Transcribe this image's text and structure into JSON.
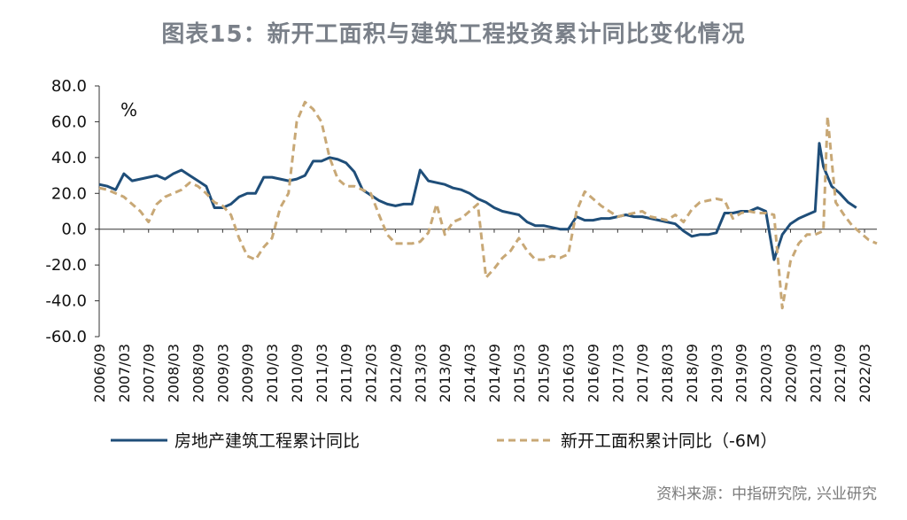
{
  "title": "图表15：新开工面积与建筑工程投资累计同比变化情况",
  "unit": "%",
  "source": "资料来源：中指研究院, 兴业研究",
  "colors": {
    "series1": "#1f4e79",
    "series2": "#c8a876",
    "axis": "#333333",
    "title": "#7a8089"
  },
  "chart_data": {
    "type": "line",
    "ylim": [
      -60,
      80
    ],
    "yticks": [
      "80.0",
      "60.0",
      "40.0",
      "20.0",
      "0.0",
      "-20.0",
      "-40.0",
      "-60.0"
    ],
    "ytick_values": [
      80,
      60,
      40,
      20,
      0,
      -20,
      -40,
      -60
    ],
    "x_start": "2006/09",
    "x_end": "2022/06",
    "x_tick_labels": [
      "2006/09",
      "2007/03",
      "2007/09",
      "2008/03",
      "2008/09",
      "2009/03",
      "2009/09",
      "2010/03",
      "2010/09",
      "2011/03",
      "2011/09",
      "2012/03",
      "2012/09",
      "2013/03",
      "2013/09",
      "2014/03",
      "2014/09",
      "2015/03",
      "2015/09",
      "2016/03",
      "2016/09",
      "2017/03",
      "2017/09",
      "2018/03",
      "2018/09",
      "2019/03",
      "2019/09",
      "2020/03",
      "2020/09",
      "2021/03",
      "2021/09",
      "2022/03"
    ],
    "grid": false,
    "legend_position": "bottom",
    "series": [
      {
        "name": "房地产建筑工程累计同比",
        "style": "solid",
        "points": [
          [
            "2006/09",
            25
          ],
          [
            "2006/11",
            24
          ],
          [
            "2007/01",
            22
          ],
          [
            "2007/03",
            31
          ],
          [
            "2007/05",
            27
          ],
          [
            "2007/07",
            28
          ],
          [
            "2007/09",
            29
          ],
          [
            "2007/11",
            30
          ],
          [
            "2008/01",
            28
          ],
          [
            "2008/03",
            31
          ],
          [
            "2008/05",
            33
          ],
          [
            "2008/07",
            30
          ],
          [
            "2008/09",
            27
          ],
          [
            "2008/11",
            24
          ],
          [
            "2009/01",
            12
          ],
          [
            "2009/03",
            12
          ],
          [
            "2009/05",
            14
          ],
          [
            "2009/07",
            18
          ],
          [
            "2009/09",
            20
          ],
          [
            "2009/11",
            20
          ],
          [
            "2010/01",
            29
          ],
          [
            "2010/03",
            29
          ],
          [
            "2010/05",
            28
          ],
          [
            "2010/07",
            27
          ],
          [
            "2010/09",
            28
          ],
          [
            "2010/11",
            30
          ],
          [
            "2011/01",
            38
          ],
          [
            "2011/03",
            38
          ],
          [
            "2011/05",
            40
          ],
          [
            "2011/07",
            39
          ],
          [
            "2011/09",
            37
          ],
          [
            "2011/11",
            32
          ],
          [
            "2012/01",
            22
          ],
          [
            "2012/03",
            19
          ],
          [
            "2012/05",
            16
          ],
          [
            "2012/07",
            14
          ],
          [
            "2012/09",
            13
          ],
          [
            "2012/11",
            14
          ],
          [
            "2013/01",
            14
          ],
          [
            "2013/03",
            33
          ],
          [
            "2013/05",
            27
          ],
          [
            "2013/07",
            26
          ],
          [
            "2013/09",
            25
          ],
          [
            "2013/11",
            23
          ],
          [
            "2014/01",
            22
          ],
          [
            "2014/03",
            20
          ],
          [
            "2014/05",
            17
          ],
          [
            "2014/07",
            15
          ],
          [
            "2014/09",
            12
          ],
          [
            "2014/11",
            10
          ],
          [
            "2015/01",
            9
          ],
          [
            "2015/03",
            8
          ],
          [
            "2015/05",
            4
          ],
          [
            "2015/07",
            2
          ],
          [
            "2015/09",
            2
          ],
          [
            "2015/11",
            1
          ],
          [
            "2016/01",
            0
          ],
          [
            "2016/03",
            0
          ],
          [
            "2016/05",
            7
          ],
          [
            "2016/07",
            5
          ],
          [
            "2016/09",
            5
          ],
          [
            "2016/11",
            6
          ],
          [
            "2017/01",
            6
          ],
          [
            "2017/03",
            7
          ],
          [
            "2017/05",
            8
          ],
          [
            "2017/07",
            7
          ],
          [
            "2017/09",
            7
          ],
          [
            "2017/11",
            6
          ],
          [
            "2018/01",
            5
          ],
          [
            "2018/03",
            4
          ],
          [
            "2018/05",
            3
          ],
          [
            "2018/07",
            -1
          ],
          [
            "2018/09",
            -4
          ],
          [
            "2018/11",
            -3
          ],
          [
            "2019/01",
            -3
          ],
          [
            "2019/03",
            -2
          ],
          [
            "2019/05",
            9
          ],
          [
            "2019/07",
            9
          ],
          [
            "2019/09",
            10
          ],
          [
            "2019/11",
            10
          ],
          [
            "2020/01",
            12
          ],
          [
            "2020/03",
            10
          ],
          [
            "2020/05",
            -17
          ],
          [
            "2020/07",
            -3
          ],
          [
            "2020/09",
            3
          ],
          [
            "2020/11",
            6
          ],
          [
            "2021/01",
            8
          ],
          [
            "2021/03",
            10
          ],
          [
            "2021/04",
            48
          ],
          [
            "2021/05",
            35
          ],
          [
            "2021/07",
            24
          ],
          [
            "2021/09",
            20
          ],
          [
            "2021/11",
            15
          ],
          [
            "2022/01",
            12
          ]
        ]
      },
      {
        "name": "新开工面积累计同比（-6M）",
        "style": "dashed",
        "points": [
          [
            "2006/09",
            23
          ],
          [
            "2006/11",
            22
          ],
          [
            "2007/01",
            20
          ],
          [
            "2007/03",
            18
          ],
          [
            "2007/05",
            14
          ],
          [
            "2007/07",
            10
          ],
          [
            "2007/09",
            4
          ],
          [
            "2007/11",
            14
          ],
          [
            "2008/01",
            18
          ],
          [
            "2008/03",
            20
          ],
          [
            "2008/05",
            22
          ],
          [
            "2008/07",
            26
          ],
          [
            "2008/09",
            24
          ],
          [
            "2008/11",
            20
          ],
          [
            "2009/01",
            15
          ],
          [
            "2009/03",
            13
          ],
          [
            "2009/05",
            8
          ],
          [
            "2009/07",
            -5
          ],
          [
            "2009/09",
            -15
          ],
          [
            "2009/11",
            -17
          ],
          [
            "2010/01",
            -10
          ],
          [
            "2010/03",
            -5
          ],
          [
            "2010/05",
            12
          ],
          [
            "2010/07",
            20
          ],
          [
            "2010/09",
            60
          ],
          [
            "2010/11",
            71
          ],
          [
            "2011/01",
            67
          ],
          [
            "2011/03",
            60
          ],
          [
            "2011/05",
            40
          ],
          [
            "2011/07",
            28
          ],
          [
            "2011/09",
            24
          ],
          [
            "2011/11",
            24
          ],
          [
            "2012/01",
            22
          ],
          [
            "2012/03",
            20
          ],
          [
            "2012/05",
            8
          ],
          [
            "2012/07",
            -3
          ],
          [
            "2012/09",
            -8
          ],
          [
            "2012/11",
            -8
          ],
          [
            "2013/01",
            -8
          ],
          [
            "2013/03",
            -7
          ],
          [
            "2013/05",
            -2
          ],
          [
            "2013/07",
            14
          ],
          [
            "2013/09",
            -3
          ],
          [
            "2013/11",
            4
          ],
          [
            "2014/01",
            6
          ],
          [
            "2014/03",
            10
          ],
          [
            "2014/05",
            14
          ],
          [
            "2014/07",
            -27
          ],
          [
            "2014/09",
            -22
          ],
          [
            "2014/11",
            -16
          ],
          [
            "2015/01",
            -12
          ],
          [
            "2015/03",
            -5
          ],
          [
            "2015/05",
            -12
          ],
          [
            "2015/07",
            -17
          ],
          [
            "2015/09",
            -17
          ],
          [
            "2015/11",
            -15
          ],
          [
            "2016/01",
            -16
          ],
          [
            "2016/03",
            -14
          ],
          [
            "2016/05",
            10
          ],
          [
            "2016/07",
            21
          ],
          [
            "2016/09",
            17
          ],
          [
            "2016/11",
            13
          ],
          [
            "2017/01",
            10
          ],
          [
            "2017/03",
            7
          ],
          [
            "2017/05",
            8
          ],
          [
            "2017/07",
            9
          ],
          [
            "2017/09",
            10
          ],
          [
            "2017/11",
            7
          ],
          [
            "2018/01",
            6
          ],
          [
            "2018/03",
            5
          ],
          [
            "2018/05",
            8
          ],
          [
            "2018/07",
            4
          ],
          [
            "2018/09",
            11
          ],
          [
            "2018/11",
            15
          ],
          [
            "2019/01",
            16
          ],
          [
            "2019/03",
            17
          ],
          [
            "2019/05",
            16
          ],
          [
            "2019/07",
            6
          ],
          [
            "2019/09",
            9
          ],
          [
            "2019/11",
            10
          ],
          [
            "2020/01",
            9
          ],
          [
            "2020/03",
            9
          ],
          [
            "2020/05",
            8
          ],
          [
            "2020/07",
            -44
          ],
          [
            "2020/09",
            -18
          ],
          [
            "2020/11",
            -8
          ],
          [
            "2021/01",
            -3
          ],
          [
            "2021/03",
            -3
          ],
          [
            "2021/05",
            -1
          ],
          [
            "2021/06",
            63
          ],
          [
            "2021/08",
            15
          ],
          [
            "2021/10",
            8
          ],
          [
            "2021/12",
            2
          ],
          [
            "2022/02",
            -2
          ],
          [
            "2022/04",
            -6
          ],
          [
            "2022/06",
            -8
          ]
        ]
      }
    ]
  }
}
